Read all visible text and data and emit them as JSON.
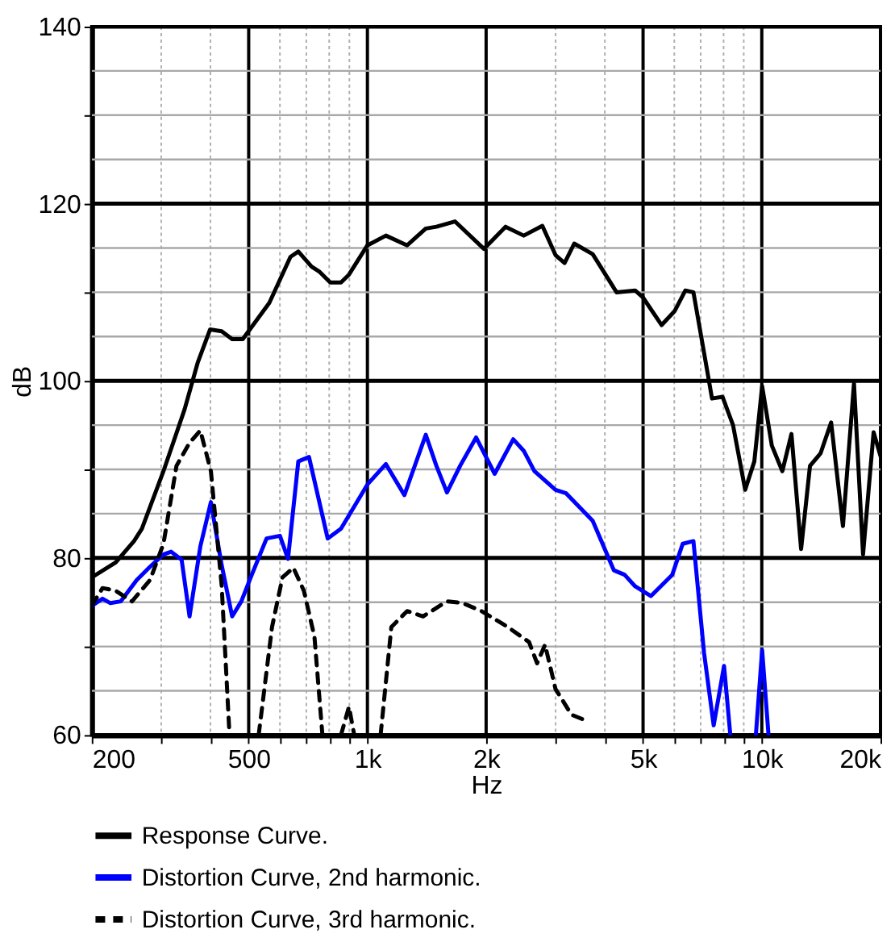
{
  "chart_data": {
    "type": "line",
    "xlabel": "Hz",
    "ylabel": "dB",
    "log": "x",
    "grid": true,
    "legend": "bottom",
    "xlim": [
      200,
      20000
    ],
    "ylim": [
      60,
      140
    ],
    "xticks": [
      200,
      {
        "value": 300,
        "label": null
      },
      {
        "value": 400,
        "label": null
      },
      500,
      {
        "value": 600,
        "label": null
      },
      {
        "value": 700,
        "label": null
      },
      {
        "value": 800,
        "label": null
      },
      {
        "value": 900,
        "label": null
      },
      {
        "value": 1000,
        "label": "1k"
      },
      {
        "value": 2000,
        "label": "2k"
      },
      {
        "value": 3000,
        "label": null
      },
      {
        "value": 4000,
        "label": null
      },
      {
        "value": 5000,
        "label": "5k"
      },
      {
        "value": 6000,
        "label": null
      },
      {
        "value": 7000,
        "label": null
      },
      {
        "value": 8000,
        "label": null
      },
      {
        "value": 9000,
        "label": null
      },
      {
        "value": 10000,
        "label": "10k"
      },
      {
        "value": 20000,
        "label": "20k"
      }
    ],
    "yticks": [
      60,
      {
        "value": 65,
        "label": null
      },
      {
        "value": 70,
        "label": null
      },
      {
        "value": 75,
        "label": null
      },
      80,
      {
        "value": 85,
        "label": null
      },
      {
        "value": 90,
        "label": null
      },
      {
        "value": 95,
        "label": null
      },
      100,
      {
        "value": 105,
        "label": null
      },
      {
        "value": 110,
        "label": null
      },
      {
        "value": 115,
        "label": null
      },
      120,
      {
        "value": 125,
        "label": null
      },
      {
        "value": 130,
        "label": null
      },
      {
        "value": 135,
        "label": null
      },
      140
    ],
    "series": [
      {
        "name": "Response Curve.",
        "color": "#000000",
        "line_style": "solid",
        "x": [
          200,
          230,
          256,
          268,
          304,
          344,
          371,
          399,
          427,
          454,
          483,
          564,
          638,
          668,
          722,
          757,
          805,
          857,
          898,
          1000,
          1114,
          1261,
          1406,
          1496,
          1667,
          1975,
          2240,
          2491,
          2777,
          2999,
          3162,
          3345,
          3726,
          4283,
          4773,
          5000,
          5572,
          6017,
          6400,
          6709,
          7137,
          7478,
          7950,
          8454,
          9076,
          9574,
          10020,
          10602,
          11275,
          11890,
          12580,
          13250,
          14090,
          14990,
          16060,
          17130,
          18060,
          19210,
          20000
        ],
        "values": [
          77.8,
          79.5,
          81.9,
          83.3,
          89.8,
          96.8,
          102,
          105.8,
          105.6,
          104.7,
          104.7,
          108.8,
          114,
          114.6,
          112.9,
          112.3,
          111.1,
          111.1,
          112,
          115.3,
          116.4,
          115.3,
          117.2,
          117.4,
          118,
          114.9,
          117.4,
          116.4,
          117.5,
          114.2,
          113.3,
          115.5,
          114.3,
          110,
          110.2,
          109.4,
          106.3,
          107.9,
          110.2,
          110,
          103.2,
          98,
          98.2,
          95,
          87.7,
          90.9,
          99.4,
          92.7,
          89.8,
          94,
          81,
          90.4,
          91.8,
          95.3,
          83.6,
          99.7,
          80.4,
          94.2,
          91.5
        ]
      },
      {
        "name": "Distortion Curve, 2nd harmonic.",
        "color": "#0000ff",
        "line_style": "solid",
        "x": [
          200,
          213,
          223,
          237,
          260,
          281,
          304,
          318,
          338,
          354,
          377,
          401,
          427,
          454,
          479,
          506,
          555,
          600,
          629,
          668,
          711,
          793,
          857,
          1000,
          1114,
          1241,
          1406,
          1496,
          1591,
          1718,
          1886,
          2102,
          2343,
          2491,
          2651,
          2999,
          3191,
          3726,
          4217,
          4488,
          4773,
          5236,
          5929,
          6302,
          6709,
          7137,
          7551,
          8022,
          8323,
          9000,
          9660,
          10020,
          10400
        ],
        "values": [
          74.6,
          75.4,
          74.9,
          75.1,
          77.5,
          79,
          80.4,
          80.7,
          79.8,
          73.4,
          81.3,
          86.3,
          79.2,
          73.4,
          75.1,
          77.8,
          82.2,
          82.5,
          79.9,
          90.9,
          91.4,
          82.2,
          83.3,
          88.3,
          90.6,
          87.1,
          93.9,
          90.4,
          87.4,
          90.4,
          93.6,
          89.5,
          93.4,
          92.1,
          89.8,
          87.7,
          87.3,
          84.2,
          78.6,
          78.1,
          76.8,
          75.7,
          78.1,
          81.6,
          81.9,
          69.3,
          61.1,
          67.8,
          60,
          null,
          60,
          69.6,
          60
        ]
      },
      {
        "name": "Distortion Curve, 3rd harmonic.",
        "color": "#000000",
        "line_style": "dashed",
        "x": [
          200,
          213,
          230,
          253,
          281,
          304,
          328,
          354,
          377,
          401,
          427,
          447,
          490,
          530,
          573,
          609,
          649,
          690,
          734,
          769,
          810,
          857,
          898,
          926,
          1000,
          1080,
          1150,
          1261,
          1384,
          1591,
          1745,
          1946,
          2270,
          2570,
          2693,
          2821,
          2999,
          3291,
          3556
        ],
        "values": [
          74.6,
          76.6,
          76.3,
          75.1,
          77.5,
          81.6,
          90.4,
          93,
          94.4,
          89.8,
          76.9,
          60,
          null,
          60,
          72.2,
          77.8,
          78.9,
          76.3,
          71.1,
          60,
          null,
          60,
          63.2,
          60,
          null,
          60,
          72.2,
          74,
          73.4,
          75.1,
          74.9,
          74,
          72.2,
          70.5,
          68.1,
          70.2,
          65.2,
          62.3,
          61.7
        ]
      }
    ]
  }
}
